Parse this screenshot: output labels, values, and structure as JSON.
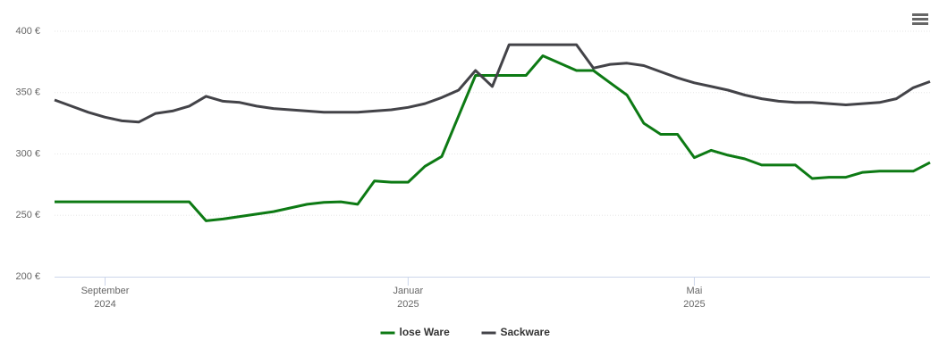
{
  "chart_data": {
    "type": "line",
    "categories": [
      null,
      null,
      null,
      "September 2024",
      null,
      null,
      null,
      null,
      null,
      null,
      null,
      null,
      null,
      null,
      null,
      null,
      null,
      null,
      null,
      null,
      null,
      "Januar 2025",
      null,
      null,
      null,
      null,
      null,
      null,
      null,
      null,
      null,
      null,
      null,
      null,
      null,
      null,
      null,
      null,
      "Mai 2025",
      null,
      null,
      null,
      null,
      null,
      null,
      null,
      null,
      null,
      null,
      null,
      null,
      null,
      null
    ],
    "series": [
      {
        "name": "lose Ware",
        "color": "#0d7a14",
        "values": [
          261,
          261,
          261,
          261,
          261,
          261,
          261,
          261,
          261,
          245.5,
          247,
          249,
          251,
          253,
          256,
          259,
          260.5,
          261,
          259,
          278,
          277,
          277,
          290,
          298,
          331,
          364,
          364,
          364,
          364,
          380,
          374,
          368,
          368,
          358,
          348,
          325,
          316,
          316,
          297,
          303,
          299,
          296,
          291,
          291,
          291,
          280,
          281,
          281,
          285,
          286,
          286,
          286,
          293
        ]
      },
      {
        "name": "Sackware",
        "color": "#434348",
        "values": [
          344,
          339,
          334,
          330,
          327,
          326,
          333,
          335,
          339,
          347,
          343,
          342,
          339,
          337,
          336,
          335,
          334,
          334,
          334,
          335,
          336,
          338,
          341,
          346,
          352,
          368,
          355,
          389,
          389,
          389,
          389,
          389,
          370,
          373,
          374,
          372,
          367,
          362,
          358,
          355,
          352,
          348,
          345,
          343,
          342,
          342,
          341,
          340,
          341,
          342,
          345,
          354,
          359
        ]
      }
    ],
    "ylim": [
      200,
      400
    ],
    "yticks": [
      {
        "value": 200,
        "label": "200 €"
      },
      {
        "value": 250,
        "label": "250 €"
      },
      {
        "value": 300,
        "label": "300 €"
      },
      {
        "value": 350,
        "label": "350 €"
      },
      {
        "value": 400,
        "label": "400 €"
      }
    ],
    "grid": true,
    "legend": "bottom"
  }
}
